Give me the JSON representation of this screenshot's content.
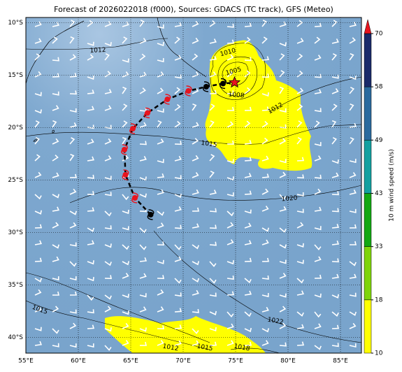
{
  "chart_data": {
    "type": "map",
    "title": "Forecast of 2026022018 (f000), Sources: GDACS (TC track), GFS (Meteo)",
    "xlim": [
      55,
      87
    ],
    "ylim": [
      -41.5,
      -9.5
    ],
    "xticks": [
      {
        "value": 55,
        "label": "55°E"
      },
      {
        "value": 60,
        "label": "60°E"
      },
      {
        "value": 65,
        "label": "65°E"
      },
      {
        "value": 70,
        "label": "70°E"
      },
      {
        "value": 75,
        "label": "75°E"
      },
      {
        "value": 80,
        "label": "80°E"
      },
      {
        "value": 85,
        "label": "85°E"
      }
    ],
    "yticks": [
      {
        "value": -10,
        "label": "10°S"
      },
      {
        "value": -15,
        "label": "15°S"
      },
      {
        "value": -20,
        "label": "20°S"
      },
      {
        "value": -25,
        "label": "25°S"
      },
      {
        "value": -30,
        "label": "30°S"
      },
      {
        "value": -35,
        "label": "35°S"
      },
      {
        "value": -40,
        "label": "40°S"
      }
    ],
    "grid": true,
    "contour_labels": [
      "1012",
      "1010",
      "1005",
      "1008",
      "1012",
      "1015",
      "1020",
      "1015",
      "1022",
      "1012",
      "1015",
      "1018"
    ],
    "track": {
      "lon": [
        66.9,
        65.4,
        64.5,
        64.4,
        65.2,
        66.6,
        68.5,
        70.5,
        72.2,
        73.8,
        74.9
      ],
      "lat": [
        -28.3,
        -26.7,
        -24.5,
        -22.1,
        -20.1,
        -18.6,
        -17.3,
        -16.5,
        -16.1,
        -15.8,
        -15.7
      ],
      "colors": [
        "#000000",
        "#e8141e",
        "#e8141e",
        "#e8141e",
        "#e8141e",
        "#e8141e",
        "#e8141e",
        "#e8141e",
        "#000000",
        "#000000",
        "#e8141e"
      ]
    },
    "colorbar": {
      "label": "10 m wind speed (m/s)",
      "ticks": [
        10,
        18,
        33,
        43,
        49,
        58,
        70
      ],
      "colors": [
        "#ffff00",
        "#7fd40a",
        "#13a813",
        "#13a0a0",
        "#2a6a9e",
        "#1a2a6a"
      ],
      "extend_color": "#e8141e"
    }
  }
}
